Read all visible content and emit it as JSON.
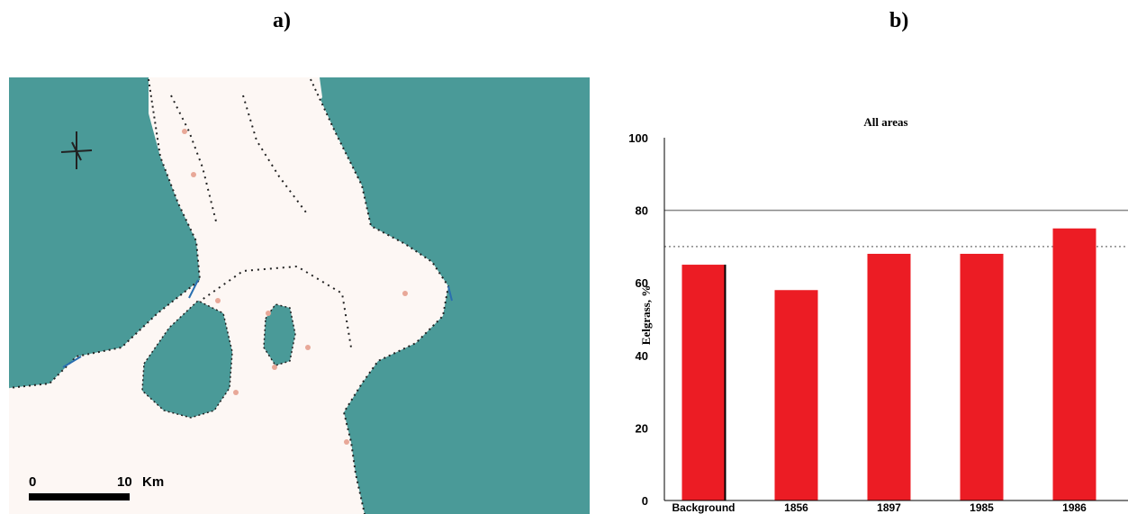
{
  "panels": {
    "a_label": "a)",
    "b_label": "b)"
  },
  "map": {
    "scale_start": "0",
    "scale_end": "10",
    "scale_unit": "Km",
    "colors": {
      "water": "#4a9a98",
      "land": "#fdf7f4",
      "marker": "#e8a898",
      "coast": "#222222",
      "blue_edge": "#2a6fb0"
    }
  },
  "chart_data": {
    "type": "bar",
    "title": "All areas",
    "ylabel": "Eelgrass, %",
    "xlabel": "",
    "ylim": [
      0,
      100
    ],
    "yticks": [
      "0",
      "20",
      "40",
      "60",
      "80",
      "100"
    ],
    "categories": [
      "Background",
      "1856",
      "1897",
      "1985",
      "1986"
    ],
    "values": [
      65,
      58,
      68,
      68,
      75
    ],
    "reference_line": 70,
    "grid_line": 80,
    "color": "#ec1c24"
  }
}
